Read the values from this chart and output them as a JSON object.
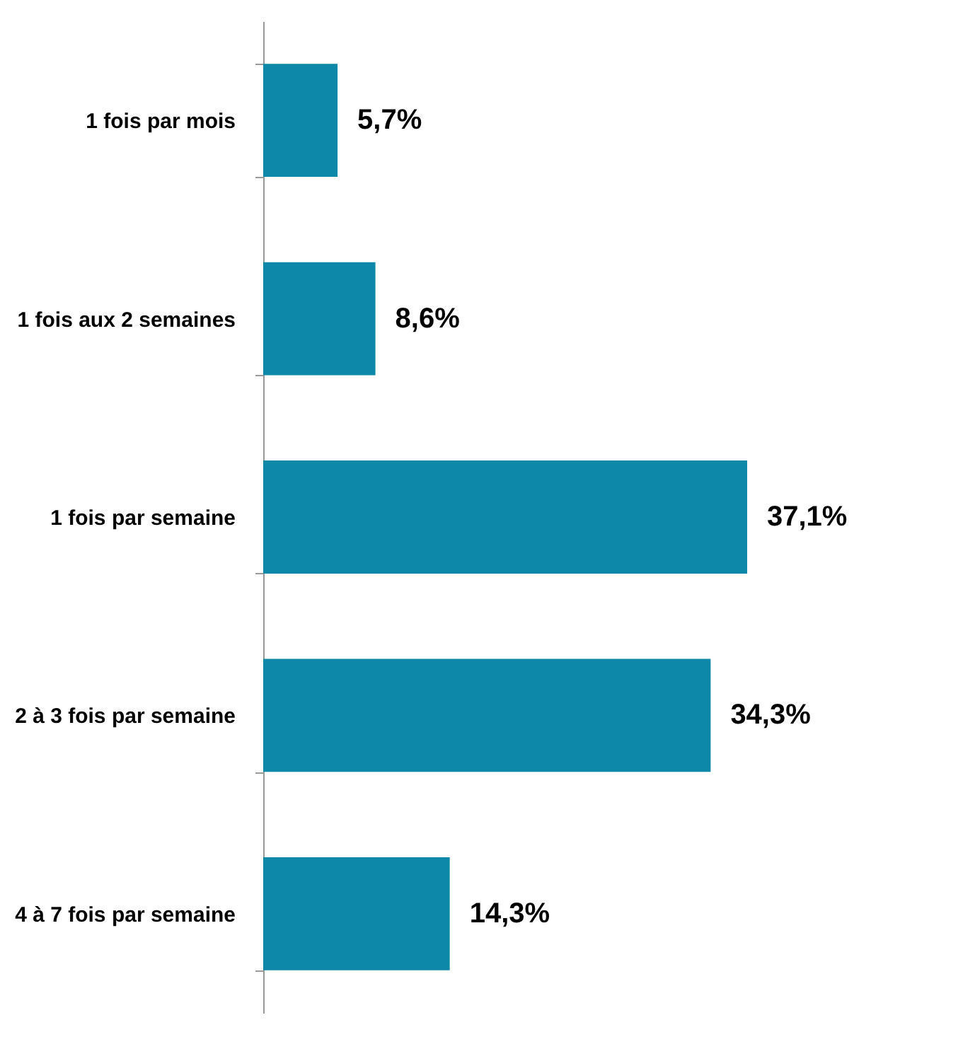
{
  "chart_data": {
    "type": "bar",
    "orientation": "horizontal",
    "categories": [
      "1 fois par mois",
      "1 fois aux 2 semaines",
      "1 fois par semaine",
      "2 à 3 fois par semaine",
      "4 à 7 fois par semaine"
    ],
    "values": [
      5.7,
      8.6,
      37.1,
      34.3,
      14.3
    ],
    "value_labels": [
      "5,7%",
      "8,6%",
      "37,1%",
      "34,3%",
      "14,3%"
    ],
    "color": "#0e88a8",
    "tick_labels": "y",
    "grid": false
  }
}
